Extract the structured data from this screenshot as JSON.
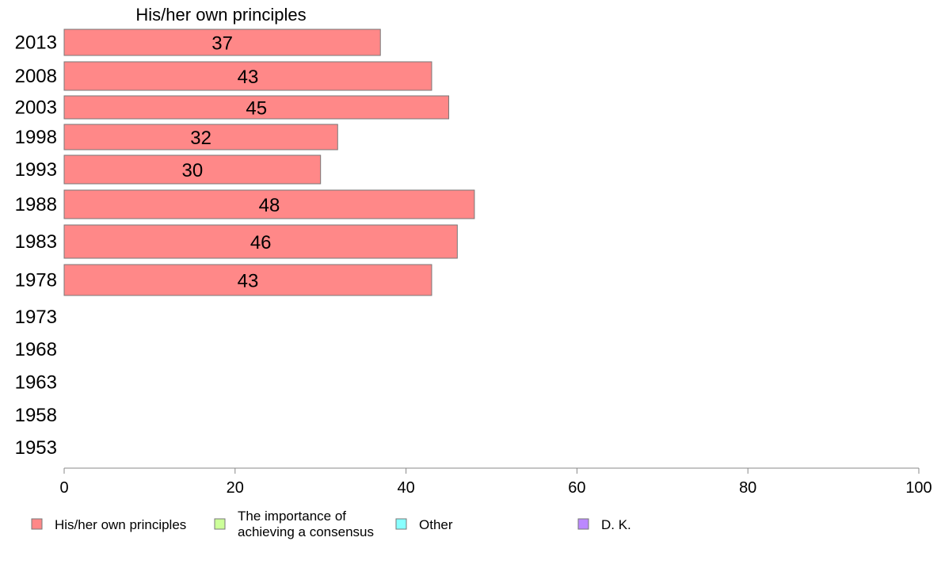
{
  "chart_data": {
    "type": "bar",
    "orientation": "horizontal",
    "stacked": true,
    "column_header": "His/her own principles",
    "categories": [
      "2013",
      "2008",
      "2003",
      "1998",
      "1993",
      "1988",
      "1983",
      "1978",
      "1973",
      "1968",
      "1963",
      "1958",
      "1953"
    ],
    "series": [
      {
        "name": "His/her own principles",
        "color": "#ff8888",
        "values": [
          37,
          43,
          45,
          32,
          30,
          48,
          46,
          43,
          null,
          null,
          null,
          null,
          null
        ]
      },
      {
        "name": "The importance of achieving a consensus",
        "color": "#ccff99",
        "values": [
          null,
          null,
          null,
          null,
          null,
          null,
          null,
          null,
          null,
          null,
          null,
          null,
          null
        ]
      },
      {
        "name": "Other",
        "color": "#88ffff",
        "values": [
          null,
          null,
          null,
          null,
          null,
          null,
          null,
          null,
          null,
          null,
          null,
          null,
          null
        ]
      },
      {
        "name": "D. K.",
        "color": "#bb88ff",
        "values": [
          null,
          null,
          null,
          null,
          null,
          null,
          null,
          null,
          null,
          null,
          null,
          null,
          null
        ]
      }
    ],
    "legend_labels": [
      [
        "His/her own principles"
      ],
      [
        "The importance of",
        "achieving a consensus"
      ],
      [
        "Other"
      ],
      [
        "D. K."
      ]
    ],
    "xlim": [
      0,
      100
    ],
    "xticks": [
      0,
      20,
      40,
      60,
      80,
      100
    ],
    "grid": false,
    "legend_position": "bottom"
  }
}
